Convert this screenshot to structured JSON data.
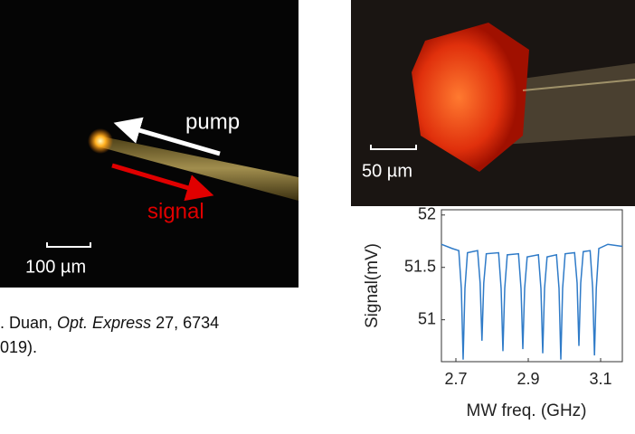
{
  "photos": {
    "left": {
      "pump": "pump",
      "signal": "signal",
      "scale": "100 µm"
    },
    "right": {
      "scale": "50 µm"
    }
  },
  "citation": {
    "prefix": ". Duan, ",
    "journal": "Opt. Express",
    "rest": " 27, 6734",
    "line2": "019)."
  },
  "chart_data": {
    "type": "line",
    "x_label": "MW freq. (GHz)",
    "y_label": "Signal(mV)",
    "x": [
      2.66,
      2.69,
      2.708,
      2.715,
      2.72,
      2.725,
      2.732,
      2.76,
      2.767,
      2.772,
      2.777,
      2.784,
      2.818,
      2.825,
      2.83,
      2.835,
      2.842,
      2.873,
      2.88,
      2.885,
      2.89,
      2.897,
      2.928,
      2.935,
      2.94,
      2.945,
      2.952,
      2.978,
      2.985,
      2.99,
      2.995,
      3.002,
      3.028,
      3.035,
      3.04,
      3.045,
      3.052,
      3.071,
      3.078,
      3.083,
      3.088,
      3.095,
      3.12,
      3.16
    ],
    "values": [
      51.72,
      51.68,
      51.66,
      51.3,
      50.62,
      51.3,
      51.64,
      51.66,
      51.35,
      50.8,
      51.35,
      51.63,
      51.64,
      51.3,
      50.7,
      51.3,
      51.62,
      51.63,
      51.3,
      50.72,
      51.3,
      51.6,
      51.62,
      51.3,
      50.68,
      51.3,
      51.6,
      51.62,
      51.3,
      50.62,
      51.3,
      51.63,
      51.64,
      51.35,
      50.75,
      51.35,
      51.65,
      51.66,
      51.3,
      50.66,
      51.3,
      51.68,
      51.72,
      51.7
    ],
    "color": "#2f7bc8",
    "xlim": [
      2.66,
      3.16
    ],
    "ylim": [
      50.6,
      52.05
    ],
    "xticks": [
      2.7,
      2.9,
      3.1
    ],
    "yticks": [
      51,
      51.5,
      52
    ]
  }
}
